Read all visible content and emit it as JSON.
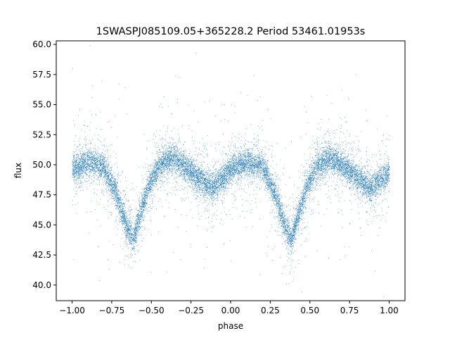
{
  "chart_data": {
    "type": "scatter",
    "title": "1SWASPJ085109.05+365228.2 Period 53461.01953s",
    "xlabel": "phase",
    "ylabel": "flux",
    "xlim": [
      -1.1,
      1.1
    ],
    "ylim": [
      38.7,
      60.3
    ],
    "xticks": [
      -1.0,
      -0.75,
      -0.5,
      -0.25,
      0.0,
      0.25,
      0.5,
      0.75,
      1.0
    ],
    "xtick_labels": [
      "−1.00",
      "−0.75",
      "−0.50",
      "−0.25",
      "0.00",
      "0.25",
      "0.50",
      "0.75",
      "1.00"
    ],
    "yticks": [
      40.0,
      42.5,
      45.0,
      47.5,
      50.0,
      52.5,
      55.0,
      57.5,
      60.0
    ],
    "ytick_labels": [
      "40.0",
      "42.5",
      "45.0",
      "47.5",
      "50.0",
      "52.5",
      "55.0",
      "57.5",
      "60.0"
    ],
    "grid": false,
    "legend": "none",
    "point_color": "#1f77b4",
    "profile": {
      "phase": [
        -1.0,
        -0.9,
        -0.8,
        -0.72,
        -0.66,
        -0.62,
        -0.58,
        -0.52,
        -0.45,
        -0.38,
        -0.3,
        -0.2,
        -0.12,
        -0.05,
        0.0,
        0.1,
        0.2,
        0.28,
        0.34,
        0.38,
        0.42,
        0.48,
        0.55,
        0.62,
        0.7,
        0.8,
        0.88,
        0.95,
        1.0
      ],
      "flux": [
        49.6,
        50.3,
        49.8,
        47.5,
        45.0,
        43.8,
        45.6,
        48.3,
        50.0,
        50.6,
        50.0,
        48.9,
        48.1,
        48.9,
        49.7,
        50.2,
        49.9,
        47.5,
        45.0,
        43.8,
        45.6,
        48.3,
        50.0,
        50.6,
        50.0,
        48.9,
        48.1,
        48.9,
        49.4
      ]
    },
    "n_points": 14000
  }
}
